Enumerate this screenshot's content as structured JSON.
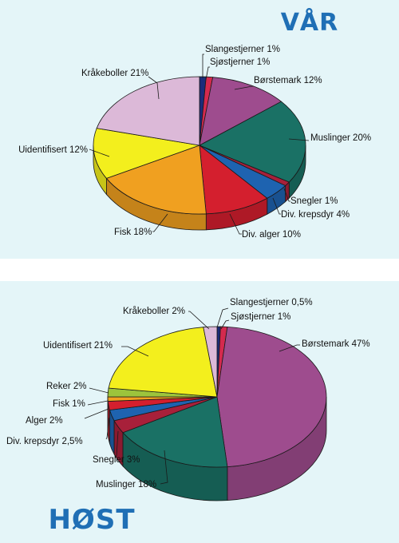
{
  "colors": {
    "background": "#e4f5f8",
    "title": "#1f6fb5",
    "edge": "#1a1a1a"
  },
  "chart_data": [
    {
      "type": "pie",
      "title": "VÅR",
      "slices": [
        {
          "label": "Slangestjerner 1%",
          "value": 1,
          "color": "#1c2c7a"
        },
        {
          "label": "Sjøstjerner 1%",
          "value": 1,
          "color": "#d42a4e"
        },
        {
          "label": "Børstemark 12%",
          "value": 12,
          "color": "#9e4c8e"
        },
        {
          "label": "Muslinger 20%",
          "value": 20,
          "color": "#1a7165"
        },
        {
          "label": "Snegler 1%",
          "value": 1,
          "color": "#a8203a"
        },
        {
          "label": "Div. krepsdyr 4%",
          "value": 4,
          "color": "#1e63b0"
        },
        {
          "label": "Div. alger 10%",
          "value": 10,
          "color": "#d41f2e"
        },
        {
          "label": "Fisk 18%",
          "value": 18,
          "color": "#f0a020"
        },
        {
          "label": "Uidentifisert 12%",
          "value": 12,
          "color": "#f3ef1d"
        },
        {
          "label": "Kråkeboller 21%",
          "value": 21,
          "color": "#dcb9d8"
        }
      ]
    },
    {
      "type": "pie",
      "title": "HØST",
      "slices": [
        {
          "label": "Slangestjerner 0,5%",
          "value": 0.5,
          "color": "#1c2c7a"
        },
        {
          "label": "Sjøstjerner 1%",
          "value": 1,
          "color": "#d42a4e"
        },
        {
          "label": "Børstemark 47%",
          "value": 47,
          "color": "#9e4c8e"
        },
        {
          "label": "Muslinger 18%",
          "value": 18,
          "color": "#1a7165"
        },
        {
          "label": "Snegler 3%",
          "value": 3,
          "color": "#a8203a"
        },
        {
          "label": "Div. krepsdyr 2,5%",
          "value": 2.5,
          "color": "#1e63b0"
        },
        {
          "label": "Alger 2%",
          "value": 2,
          "color": "#d41f2e"
        },
        {
          "label": "Fisk 1%",
          "value": 1,
          "color": "#f0a020"
        },
        {
          "label": "Reker 2%",
          "value": 2,
          "color": "#9cc43c"
        },
        {
          "label": "Uidentifisert 21%",
          "value": 21,
          "color": "#f3ef1d"
        },
        {
          "label": "Kråkeboller 2%",
          "value": 2,
          "color": "#dcb9d8"
        }
      ]
    }
  ]
}
